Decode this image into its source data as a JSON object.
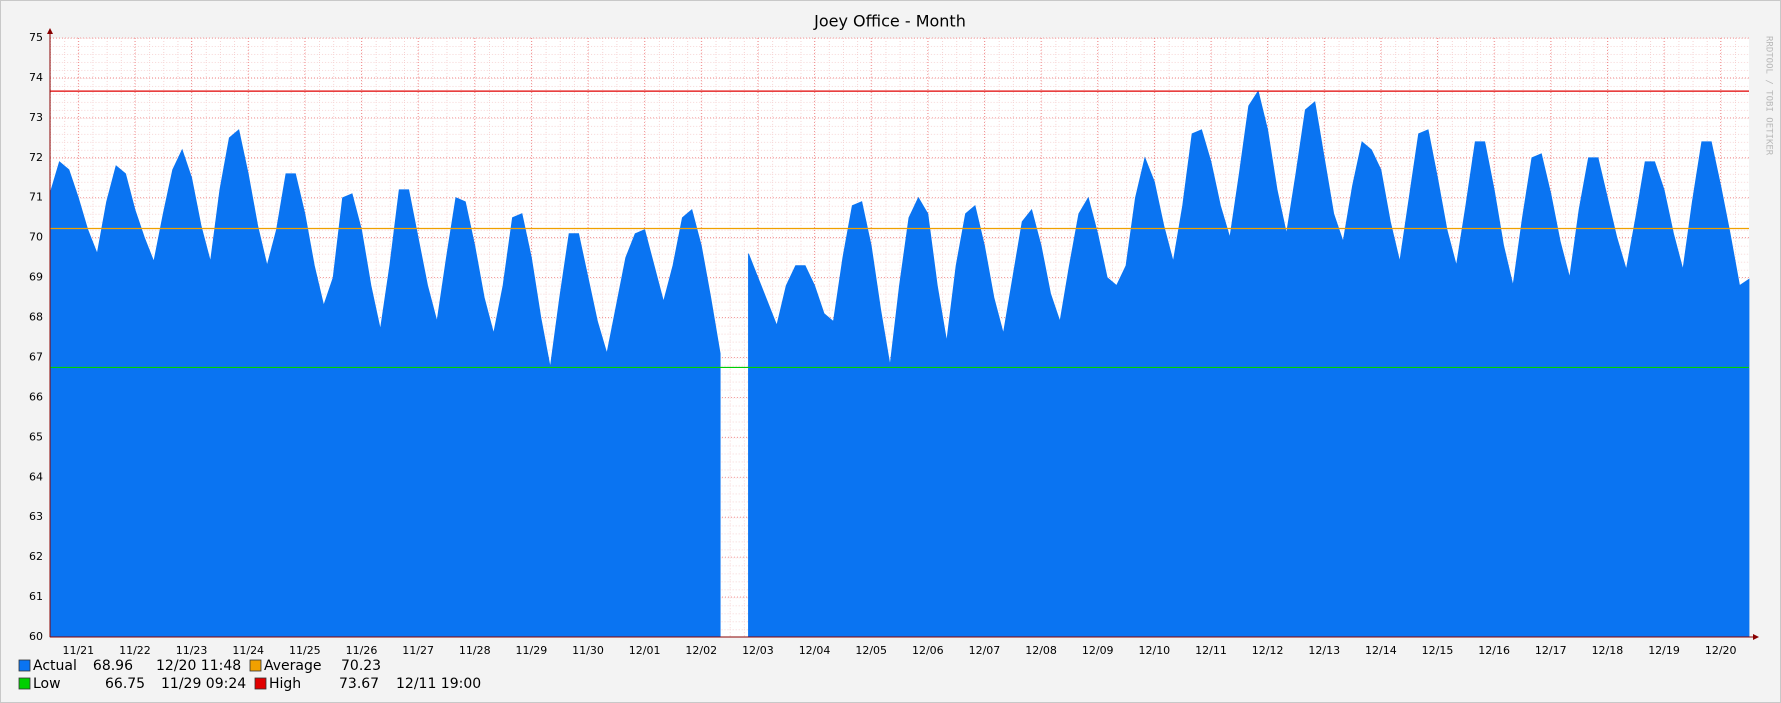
{
  "chart_data": {
    "type": "area",
    "title": "Joey Office - Month",
    "watermark": "RRDTOOL / TOBI OETIKER",
    "categories": [
      null,
      null,
      null,
      "11/21",
      null,
      null,
      null,
      null,
      null,
      "11/22",
      null,
      null,
      null,
      null,
      null,
      "11/23",
      null,
      null,
      null,
      null,
      null,
      "11/24",
      null,
      null,
      null,
      null,
      null,
      "11/25",
      null,
      null,
      null,
      null,
      null,
      "11/26",
      null,
      null,
      null,
      null,
      null,
      "11/27",
      null,
      null,
      null,
      null,
      null,
      "11/28",
      null,
      null,
      null,
      null,
      null,
      "11/29",
      null,
      null,
      null,
      null,
      null,
      "11/30",
      null,
      null,
      null,
      null,
      null,
      "12/01",
      null,
      null,
      null,
      null,
      null,
      "12/02",
      null,
      null,
      null,
      null,
      null,
      "12/03",
      null,
      null,
      null,
      null,
      null,
      "12/04",
      null,
      null,
      null,
      null,
      null,
      "12/05",
      null,
      null,
      null,
      null,
      null,
      "12/06",
      null,
      null,
      null,
      null,
      null,
      "12/07",
      null,
      null,
      null,
      null,
      null,
      "12/08",
      null,
      null,
      null,
      null,
      null,
      "12/09",
      null,
      null,
      null,
      null,
      null,
      "12/10",
      null,
      null,
      null,
      null,
      null,
      "12/11",
      null,
      null,
      null,
      null,
      null,
      "12/12",
      null,
      null,
      null,
      null,
      null,
      "12/13",
      null,
      null,
      null,
      null,
      null,
      "12/14",
      null,
      null,
      null,
      null,
      null,
      "12/15",
      null,
      null,
      null,
      null,
      null,
      "12/16",
      null,
      null,
      null,
      null,
      null,
      "12/17",
      null,
      null,
      null,
      null,
      null,
      "12/18",
      null,
      null,
      null,
      null,
      null,
      "12/19",
      null,
      null,
      null,
      null,
      null,
      "12/20",
      null,
      null,
      null
    ],
    "series": [
      {
        "name": "Actual",
        "color": "#0a74f2",
        "current_time": "12/20 11:48",
        "values": [
          71.1,
          71.9,
          71.7,
          71.0,
          70.2,
          69.6,
          70.9,
          71.8,
          71.6,
          70.7,
          70.0,
          69.4,
          70.6,
          71.7,
          72.2,
          71.5,
          70.3,
          69.4,
          71.2,
          72.5,
          72.7,
          71.6,
          70.3,
          69.3,
          70.2,
          71.6,
          71.6,
          70.6,
          69.3,
          68.3,
          69.0,
          71.0,
          71.1,
          70.2,
          68.8,
          67.7,
          69.3,
          71.2,
          71.2,
          70.0,
          68.8,
          67.9,
          69.5,
          71.0,
          70.9,
          69.8,
          68.5,
          67.6,
          68.8,
          70.5,
          70.6,
          69.5,
          68.0,
          66.75,
          68.5,
          70.1,
          70.1,
          69.0,
          67.9,
          67.1,
          68.3,
          69.5,
          70.1,
          70.2,
          69.3,
          68.4,
          69.3,
          70.5,
          70.7,
          69.8,
          68.5,
          67.1,
          null,
          null,
          69.6,
          69.0,
          68.4,
          67.8,
          68.8,
          69.3,
          69.3,
          68.8,
          68.1,
          67.9,
          69.5,
          70.8,
          70.9,
          69.8,
          68.2,
          66.8,
          68.8,
          70.5,
          71.0,
          70.6,
          68.8,
          67.4,
          69.3,
          70.6,
          70.8,
          69.8,
          68.5,
          67.6,
          69.0,
          70.4,
          70.7,
          69.8,
          68.6,
          67.9,
          69.3,
          70.6,
          71.0,
          70.1,
          69.0,
          68.8,
          69.3,
          71.0,
          72.0,
          71.4,
          70.3,
          69.4,
          70.8,
          72.6,
          72.7,
          71.9,
          70.8,
          70.0,
          71.6,
          73.3,
          73.67,
          72.7,
          71.2,
          70.1,
          71.6,
          73.2,
          73.4,
          72.0,
          70.6,
          69.9,
          71.3,
          72.4,
          72.2,
          71.7,
          70.4,
          69.4,
          71.0,
          72.6,
          72.7,
          71.5,
          70.2,
          69.3,
          70.8,
          72.4,
          72.4,
          71.2,
          69.8,
          68.8,
          70.5,
          72.0,
          72.1,
          71.1,
          69.9,
          69.0,
          70.7,
          72.0,
          72.0,
          71.0,
          70.0,
          69.2,
          70.5,
          71.9,
          71.9,
          71.2,
          70.1,
          69.2,
          70.9,
          72.4,
          72.4,
          71.3,
          70.1,
          68.8,
          68.96
        ]
      }
    ],
    "reference_lines": [
      {
        "name": "Average",
        "color": "#f0a000",
        "value": 70.23
      },
      {
        "name": "Low",
        "color": "#00d000",
        "value": 66.75,
        "time": "11/29 09:24"
      },
      {
        "name": "High",
        "color": "#e00000",
        "value": 73.67,
        "time": "12/11 19:00"
      }
    ],
    "ylim": [
      60,
      75
    ],
    "yticks": [
      60,
      61,
      62,
      63,
      64,
      65,
      66,
      67,
      68,
      69,
      70,
      71,
      72,
      73,
      74,
      75
    ],
    "grid": true
  }
}
